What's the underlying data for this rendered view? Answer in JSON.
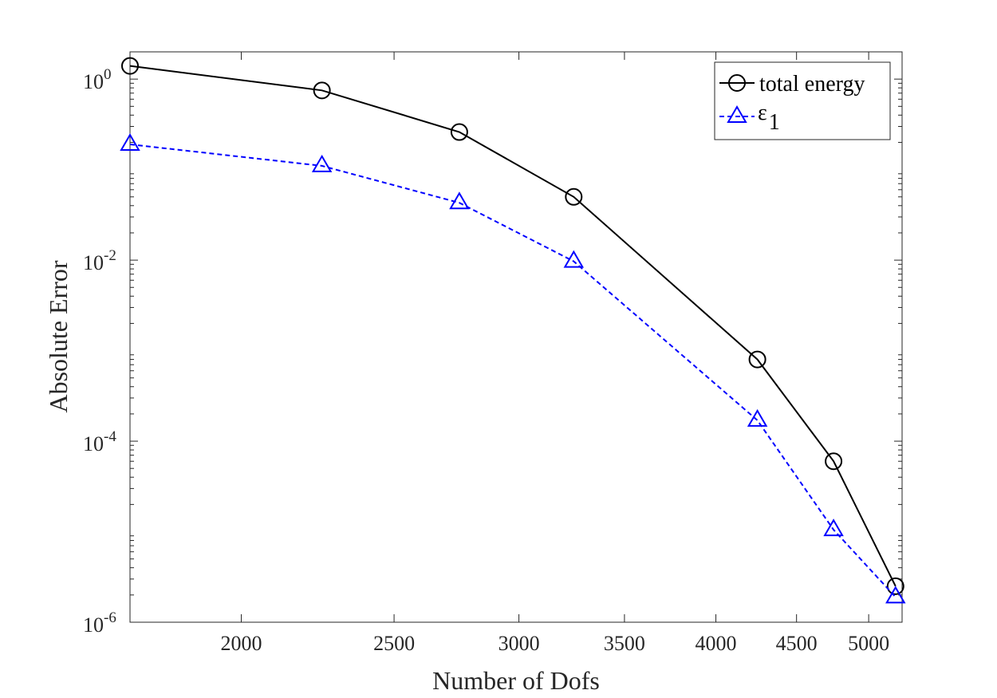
{
  "chart_data": {
    "type": "line",
    "xscale": "log",
    "yscale": "log",
    "xlabel": "Number of Dofs",
    "ylabel": "Absolute Error",
    "xlim": [
      1700,
      5250
    ],
    "ylim": [
      1e-06,
      2
    ],
    "x_ticks": [
      {
        "value": 2000,
        "label": "2000"
      },
      {
        "value": 2500,
        "label": "2500"
      },
      {
        "value": 3000,
        "label": "3000"
      },
      {
        "value": 3500,
        "label": "3500"
      },
      {
        "value": 4000,
        "label": "4000"
      },
      {
        "value": 4500,
        "label": "4500"
      },
      {
        "value": 5000,
        "label": "5000"
      }
    ],
    "y_ticks": [
      {
        "value": 1,
        "base": "10",
        "exp": "0"
      },
      {
        "value": 0.01,
        "base": "10",
        "exp": "-2"
      },
      {
        "value": 0.0001,
        "base": "10",
        "exp": "-4"
      },
      {
        "value": 1e-06,
        "base": "10",
        "exp": "-6"
      }
    ],
    "legend_position": "top-right",
    "series": [
      {
        "name": "total energy",
        "color": "#000000",
        "line_style": "solid",
        "marker": "circle",
        "x": [
          1700,
          2250,
          2750,
          3250,
          4250,
          4750,
          5200
        ],
        "values": [
          1.4,
          0.75,
          0.26,
          0.05,
          0.0008,
          6e-05,
          2.5e-06
        ]
      },
      {
        "name": "ε",
        "subscript": "1",
        "color": "#0000ff",
        "line_style": "dashed",
        "marker": "triangle",
        "x": [
          1700,
          2250,
          2750,
          3250,
          4250,
          4750,
          5200
        ],
        "values": [
          0.19,
          0.11,
          0.043,
          0.0097,
          0.00017,
          1.05e-05,
          1.9e-06
        ]
      }
    ]
  }
}
